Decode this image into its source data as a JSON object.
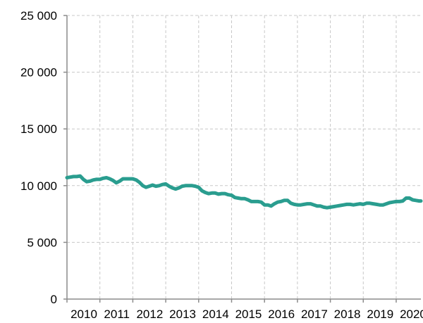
{
  "chart_data": {
    "type": "line",
    "title": "",
    "xlabel": "",
    "ylabel": "",
    "x_ticks": [
      "2010",
      "2011",
      "2012",
      "2013",
      "2014",
      "2015",
      "2016",
      "2017",
      "2018",
      "2019",
      "2020"
    ],
    "y_ticks": [
      "0",
      "5 000",
      "10 000",
      "15 000",
      "20 000",
      "25 000"
    ],
    "xlim": [
      2010,
      2020.75
    ],
    "ylim": [
      0,
      25000
    ],
    "grid": true,
    "legend": "none",
    "colors": {
      "line": "#2a9d8f",
      "grid": "#c8c8c8",
      "axis": "#8c8c8c"
    },
    "series": [
      {
        "x": [
          2010.0,
          2010.1,
          2010.2,
          2010.3,
          2010.4,
          2010.5,
          2010.6,
          2010.7,
          2010.8,
          2010.9,
          2011.0,
          2011.1,
          2011.2,
          2011.3,
          2011.4,
          2011.5,
          2011.6,
          2011.7,
          2011.8,
          2011.9,
          2012.0,
          2012.1,
          2012.2,
          2012.3,
          2012.4,
          2012.5,
          2012.6,
          2012.7,
          2012.8,
          2012.9,
          2013.0,
          2013.1,
          2013.2,
          2013.3,
          2013.4,
          2013.5,
          2013.6,
          2013.7,
          2013.8,
          2013.9,
          2014.0,
          2014.1,
          2014.2,
          2014.3,
          2014.4,
          2014.5,
          2014.6,
          2014.7,
          2014.8,
          2014.9,
          2015.0,
          2015.1,
          2015.2,
          2015.3,
          2015.4,
          2015.5,
          2015.6,
          2015.7,
          2015.8,
          2015.9,
          2016.0,
          2016.1,
          2016.2,
          2016.3,
          2016.4,
          2016.5,
          2016.6,
          2016.7,
          2016.8,
          2016.9,
          2017.0,
          2017.1,
          2017.2,
          2017.3,
          2017.4,
          2017.5,
          2017.6,
          2017.7,
          2017.8,
          2017.9,
          2018.0,
          2018.1,
          2018.2,
          2018.3,
          2018.4,
          2018.5,
          2018.6,
          2018.7,
          2018.8,
          2018.9,
          2019.0,
          2019.1,
          2019.2,
          2019.3,
          2019.4,
          2019.5,
          2019.6,
          2019.7,
          2019.8,
          2019.9,
          2020.0,
          2020.1,
          2020.2,
          2020.3,
          2020.4,
          2020.5,
          2020.6,
          2020.7,
          2020.75
        ],
        "values": [
          10700,
          10750,
          10800,
          10800,
          10850,
          10550,
          10350,
          10400,
          10500,
          10550,
          10550,
          10650,
          10700,
          10600,
          10450,
          10250,
          10400,
          10600,
          10600,
          10600,
          10600,
          10500,
          10300,
          10000,
          9850,
          9950,
          10050,
          9950,
          10000,
          10100,
          10150,
          9950,
          9800,
          9700,
          9800,
          9950,
          10000,
          10000,
          10000,
          9950,
          9850,
          9550,
          9400,
          9300,
          9350,
          9350,
          9250,
          9300,
          9300,
          9200,
          9150,
          8950,
          8900,
          8850,
          8850,
          8750,
          8600,
          8600,
          8600,
          8550,
          8300,
          8300,
          8200,
          8400,
          8550,
          8600,
          8700,
          8700,
          8450,
          8350,
          8300,
          8300,
          8350,
          8400,
          8400,
          8300,
          8200,
          8200,
          8100,
          8050,
          8100,
          8150,
          8200,
          8250,
          8300,
          8350,
          8350,
          8300,
          8350,
          8400,
          8350,
          8450,
          8450,
          8400,
          8350,
          8300,
          8300,
          8400,
          8500,
          8550,
          8600,
          8600,
          8650,
          8900,
          8900,
          8750,
          8700,
          8650,
          8650
        ]
      }
    ]
  }
}
